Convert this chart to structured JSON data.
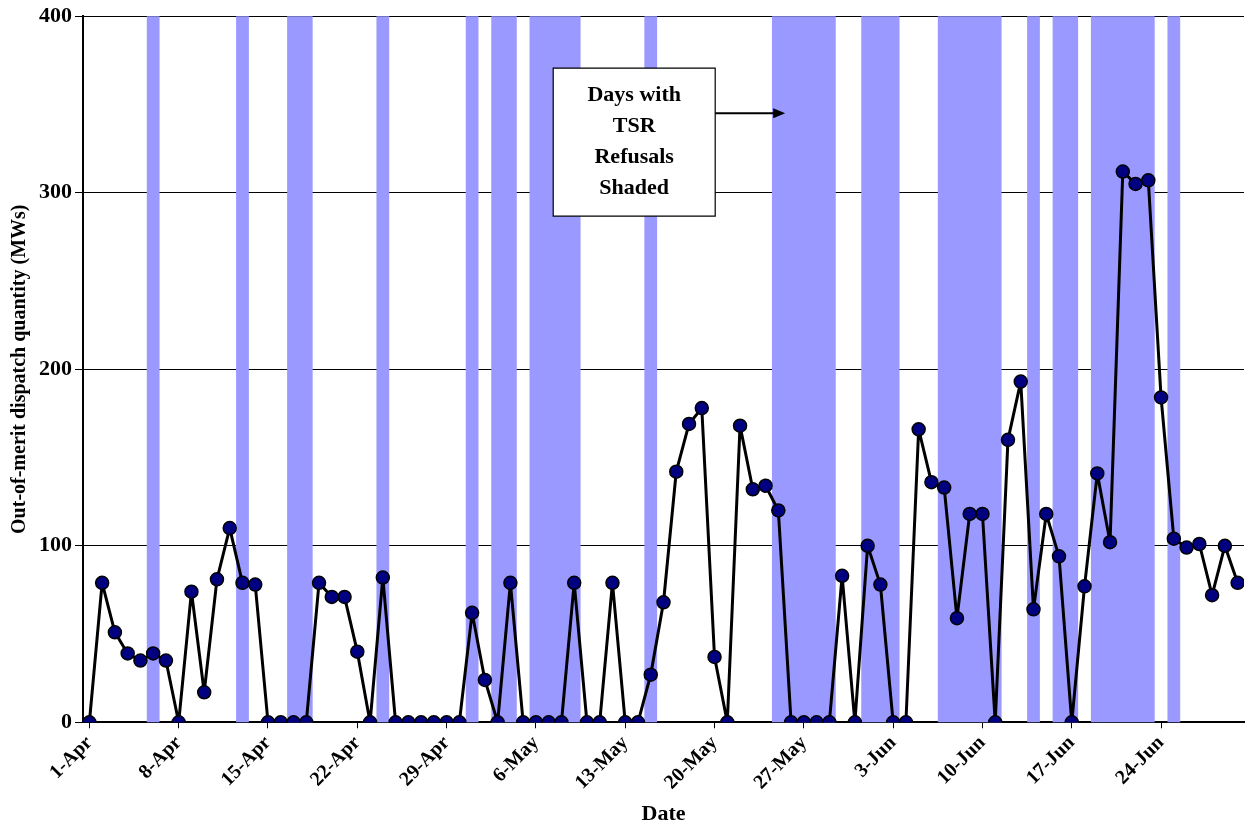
{
  "chart_data": {
    "type": "line",
    "xlabel": "Date",
    "ylabel": "Out-of-merit dispatch quantity (MWs)",
    "x": [
      "--04-01",
      "--04-02",
      "--04-03",
      "--04-04",
      "--04-05",
      "--04-06",
      "--04-07",
      "--04-08",
      "--04-09",
      "--04-10",
      "--04-11",
      "--04-12",
      "--04-13",
      "--04-14",
      "--04-15",
      "--04-16",
      "--04-17",
      "--04-18",
      "--04-19",
      "--04-20",
      "--04-21",
      "--04-22",
      "--04-23",
      "--04-24",
      "--04-25",
      "--04-26",
      "--04-27",
      "--04-28",
      "--04-29",
      "--04-30",
      "--05-01",
      "--05-02",
      "--05-03",
      "--05-04",
      "--05-05",
      "--05-06",
      "--05-07",
      "--05-08",
      "--05-09",
      "--05-10",
      "--05-11",
      "--05-12",
      "--05-13",
      "--05-14",
      "--05-15",
      "--05-16",
      "--05-17",
      "--05-18",
      "--05-19",
      "--05-20",
      "--05-21",
      "--05-22",
      "--05-23",
      "--05-24",
      "--05-25",
      "--05-26",
      "--05-27",
      "--05-28",
      "--05-29",
      "--05-30",
      "--05-31",
      "--06-01",
      "--06-02",
      "--06-03",
      "--06-04",
      "--06-05",
      "--06-06",
      "--06-07",
      "--06-08",
      "--06-09",
      "--06-10",
      "--06-11",
      "--06-12",
      "--06-13",
      "--06-14",
      "--06-15",
      "--06-16",
      "--06-17",
      "--06-18",
      "--06-19",
      "--06-20",
      "--06-21",
      "--06-22",
      "--06-23",
      "--06-24",
      "--06-25",
      "--06-26",
      "--06-27",
      "--06-28",
      "--06-29",
      "--06-30"
    ],
    "series": [
      {
        "color": "#000000",
        "values": [
          0,
          79,
          51,
          39,
          35,
          39,
          35,
          0,
          74,
          17,
          81,
          110,
          79,
          78,
          0,
          0,
          0,
          0,
          79,
          71,
          71,
          40,
          0,
          82,
          0,
          0,
          0,
          0,
          0,
          0,
          62,
          24,
          0,
          79,
          0,
          0,
          0,
          0,
          79,
          0,
          0,
          79,
          0,
          0,
          27,
          68,
          142,
          169,
          178,
          37,
          0,
          168,
          132,
          134,
          120,
          0,
          0,
          0,
          0,
          83,
          0,
          100,
          78,
          0,
          0,
          166,
          136,
          133,
          59,
          118,
          118,
          0,
          160,
          193,
          64,
          118,
          94,
          0,
          77,
          141,
          102,
          312,
          305,
          307,
          184,
          104,
          99,
          101,
          72,
          100,
          79
        ]
      }
    ],
    "marker": "circle",
    "xlim": [
      "--03-31T12:00",
      "--06-30T12:00"
    ],
    "xticks": [
      {
        "value": "--04-01",
        "label": "1-Apr"
      },
      {
        "value": "--04-08",
        "label": "8-Apr"
      },
      {
        "value": "--04-15",
        "label": "15-Apr"
      },
      {
        "value": "--04-22",
        "label": "22-Apr"
      },
      {
        "value": "--04-29",
        "label": "29-Apr"
      },
      {
        "value": "--05-06",
        "label": "6-May"
      },
      {
        "value": "--05-13",
        "label": "13-May"
      },
      {
        "value": "--05-20",
        "label": "20-May"
      },
      {
        "value": "--05-27",
        "label": "27-May"
      },
      {
        "value": "--06-03",
        "label": "3-Jun"
      },
      {
        "value": "--06-10",
        "label": "10-Jun"
      },
      {
        "value": "--06-17",
        "label": "17-Jun"
      },
      {
        "value": "--06-24",
        "label": "24-Jun"
      }
    ],
    "ylim": [
      0,
      400
    ],
    "yticks": [
      0,
      100,
      200,
      300,
      400
    ],
    "grid": "y",
    "bands": [
      {
        "axis": "x",
        "from": "--04-05T12:00",
        "to": "--04-06T12:00",
        "color": "#9999ff"
      },
      {
        "axis": "x",
        "from": "--04-12T12:00",
        "to": "--04-13T12:00",
        "color": "#9999ff"
      },
      {
        "axis": "x",
        "from": "--04-16T12:00",
        "to": "--04-18T12:00",
        "color": "#9999ff"
      },
      {
        "axis": "x",
        "from": "--04-23T12:00",
        "to": "--04-24T12:00",
        "color": "#9999ff"
      },
      {
        "axis": "x",
        "from": "--04-30T12:00",
        "to": "--05-01T12:00",
        "color": "#9999ff"
      },
      {
        "axis": "x",
        "from": "--05-02T12:00",
        "to": "--05-04T12:00",
        "color": "#9999ff"
      },
      {
        "axis": "x",
        "from": "--05-05T12:00",
        "to": "--05-09T12:00",
        "color": "#9999ff"
      },
      {
        "axis": "x",
        "from": "--05-14T12:00",
        "to": "--05-15T12:00",
        "color": "#9999ff"
      },
      {
        "axis": "x",
        "from": "--05-24T12:00",
        "to": "--05-29T12:00",
        "color": "#9999ff"
      },
      {
        "axis": "x",
        "from": "--05-31T12:00",
        "to": "--06-03T12:00",
        "color": "#9999ff"
      },
      {
        "axis": "x",
        "from": "--06-06T12:00",
        "to": "--06-11T12:00",
        "color": "#9999ff"
      },
      {
        "axis": "x",
        "from": "--06-13T12:00",
        "to": "--06-14T12:00",
        "color": "#9999ff"
      },
      {
        "axis": "x",
        "from": "--06-15T12:00",
        "to": "--06-17T12:00",
        "color": "#9999ff"
      },
      {
        "axis": "x",
        "from": "--06-18T12:00",
        "to": "--06-23T12:00",
        "color": "#9999ff"
      },
      {
        "axis": "x",
        "from": "--06-24T12:00",
        "to": "--06-25T12:00",
        "color": "#9999ff"
      }
    ],
    "annotations": [
      "Days with TSR Refusals Shaded"
    ]
  }
}
